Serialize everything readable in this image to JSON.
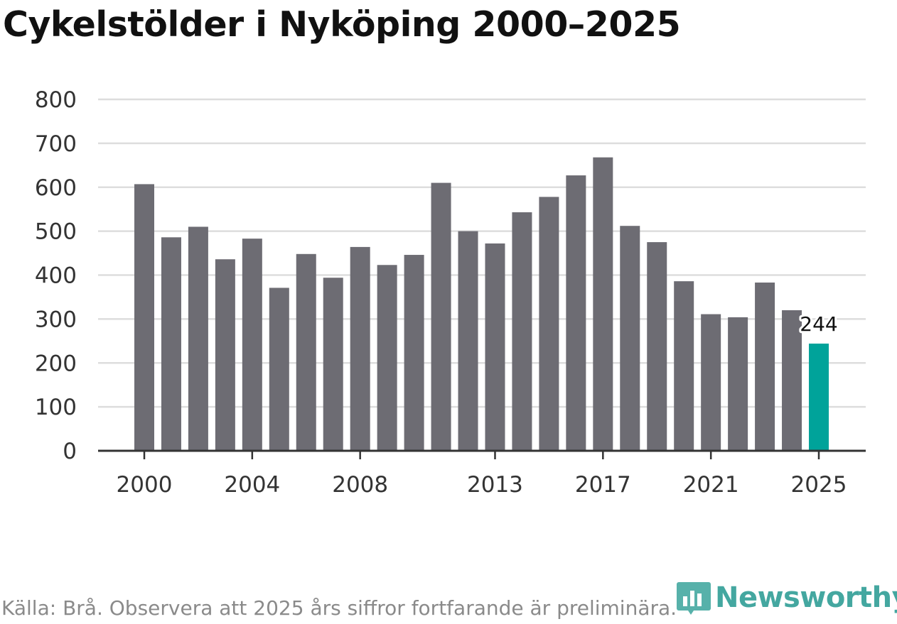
{
  "title": "Cykelstölder i Nyköping 2000–2025",
  "source": "Källa: Brå. Observera att 2025 års siffror fortfarande är preliminära.",
  "brand": "Newsworthy",
  "colors": {
    "bar": "#6d6c73",
    "highlight": "#00a39a",
    "grid": "#dddddd",
    "axis": "#333333",
    "brand": "#3aa39b"
  },
  "chart_data": {
    "type": "bar",
    "title": "Cykelstölder i Nyköping 2000–2025",
    "xlabel": "",
    "ylabel": "",
    "categories": [
      "2000",
      "2001",
      "2002",
      "2003",
      "2004",
      "2005",
      "2006",
      "2007",
      "2008",
      "2009",
      "2010",
      "2011",
      "2012",
      "2013",
      "2014",
      "2015",
      "2016",
      "2017",
      "2018",
      "2019",
      "2020",
      "2021",
      "2022",
      "2023",
      "2024",
      "2025"
    ],
    "values": [
      607,
      486,
      510,
      436,
      483,
      371,
      448,
      394,
      464,
      423,
      446,
      610,
      500,
      472,
      543,
      578,
      627,
      668,
      512,
      475,
      386,
      311,
      304,
      383,
      320,
      244
    ],
    "highlight_category": "2025",
    "data_label": "244",
    "ylim": [
      0,
      800
    ],
    "yticks": [
      "0",
      "100",
      "200",
      "300",
      "400",
      "500",
      "600",
      "700",
      "800"
    ],
    "xtick_labels": [
      "2000",
      "2004",
      "2008",
      "2013",
      "2017",
      "2021",
      "2025"
    ],
    "grid": true
  }
}
